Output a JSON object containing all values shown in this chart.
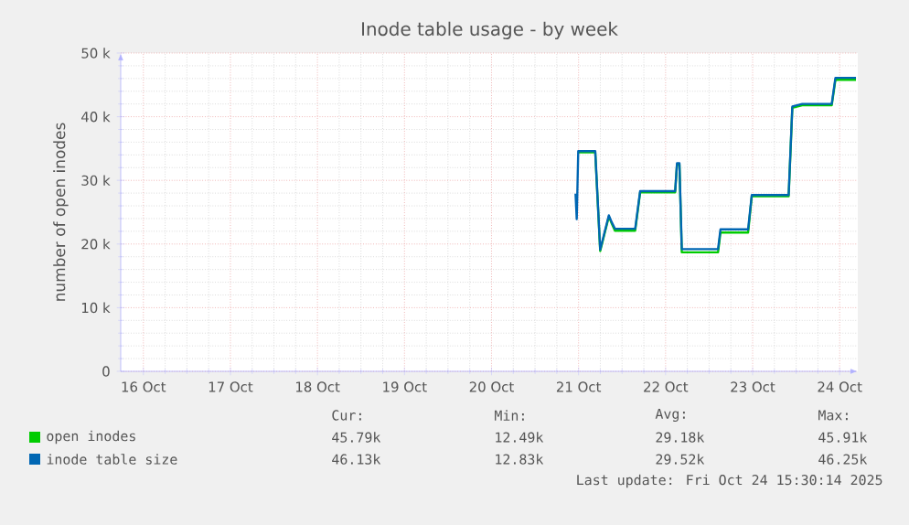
{
  "chart_data": {
    "type": "line",
    "title": "Inode table usage - by week",
    "ylabel": "number of open inodes",
    "xlim": [
      "2025-10-16T05:45",
      "2025-10-24T17:00"
    ],
    "xticks": [
      {
        "value": "2025-10-16T12:00",
        "label": "16 Oct"
      },
      {
        "value": "2025-10-17T12:00",
        "label": "17 Oct"
      },
      {
        "value": "2025-10-18T12:00",
        "label": "18 Oct"
      },
      {
        "value": "2025-10-19T12:00",
        "label": "19 Oct"
      },
      {
        "value": "2025-10-20T12:00",
        "label": "20 Oct"
      },
      {
        "value": "2025-10-21T12:00",
        "label": "21 Oct"
      },
      {
        "value": "2025-10-22T12:00",
        "label": "22 Oct"
      },
      {
        "value": "2025-10-23T12:00",
        "label": "23 Oct"
      },
      {
        "value": "2025-10-24T12:00",
        "label": "24 Oct"
      }
    ],
    "ylim": [
      0,
      50000
    ],
    "yticks": [
      {
        "value": 0,
        "label": "0"
      },
      {
        "value": 10000,
        "label": "10 k"
      },
      {
        "value": 20000,
        "label": "20 k"
      },
      {
        "value": 30000,
        "label": "30 k"
      },
      {
        "value": 40000,
        "label": "40 k"
      },
      {
        "value": 50000,
        "label": "50 k"
      }
    ],
    "grid": true,
    "legend": "bottom",
    "marker": "none",
    "line_style": "solid",
    "series": [
      {
        "name": "open inodes",
        "color": "#00cc00",
        "x": [
          "2025-10-21T11:55",
          "2025-10-21T16:36",
          "2025-10-21T17:58",
          "2025-10-21T20:21",
          "2025-10-21T21:10",
          "2025-10-21T22:02",
          "2025-10-22T03:37",
          "2025-10-22T04:59",
          "2025-10-22T14:38",
          "2025-10-22T15:09",
          "2025-10-22T15:49",
          "2025-10-22T16:28",
          "2025-10-23T02:28",
          "2025-10-23T03:08",
          "2025-10-23T10:45",
          "2025-10-23T11:46",
          "2025-10-23T21:56",
          "2025-10-23T22:57",
          "2025-10-24T01:41",
          "2025-10-24T09:49",
          "2025-10-24T10:50",
          "2025-10-24T16:30"
        ],
        "values": [
          34400,
          34400,
          18900,
          24300,
          23200,
          22100,
          22100,
          28100,
          28100,
          32500,
          32500,
          18700,
          18700,
          21800,
          21800,
          27500,
          27500,
          41400,
          41800,
          41800,
          45800,
          45800
        ]
      },
      {
        "name": "inode table size",
        "color": "#0066b3",
        "x": [
          "2025-10-21T11:10",
          "2025-10-21T11:30",
          "2025-10-21T11:55",
          "2025-10-21T16:36",
          "2025-10-21T17:58",
          "2025-10-21T20:21",
          "2025-10-21T21:10",
          "2025-10-21T22:02",
          "2025-10-22T03:37",
          "2025-10-22T04:59",
          "2025-10-22T14:38",
          "2025-10-22T15:09",
          "2025-10-22T15:49",
          "2025-10-22T16:28",
          "2025-10-23T02:28",
          "2025-10-23T03:08",
          "2025-10-23T10:45",
          "2025-10-23T11:46",
          "2025-10-23T21:56",
          "2025-10-23T22:57",
          "2025-10-24T01:41",
          "2025-10-24T09:49",
          "2025-10-24T10:50",
          "2025-10-24T16:30"
        ],
        "values": [
          27900,
          23900,
          34600,
          34600,
          19100,
          24500,
          23400,
          22400,
          22400,
          28300,
          28300,
          32700,
          32700,
          19200,
          19200,
          22300,
          22300,
          27700,
          27700,
          41600,
          42000,
          42000,
          46100,
          46100
        ]
      }
    ],
    "annotations": [
      "Cur:",
      "Min:",
      "Avg:",
      "Max:",
      "45.79k",
      "12.49k",
      "29.18k",
      "45.91k",
      "46.13k",
      "12.83k",
      "29.52k",
      "46.25k",
      "Last update: Fri Oct 24 15:30:14 2025"
    ]
  }
}
